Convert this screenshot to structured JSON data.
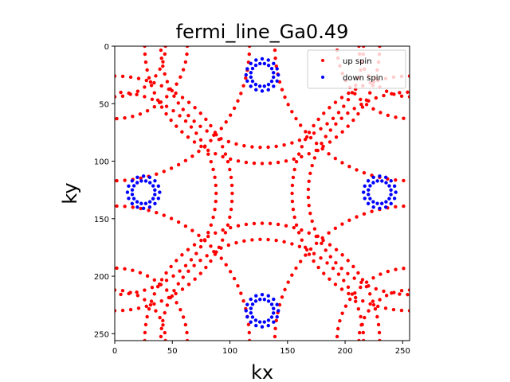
{
  "chart_data": {
    "type": "scatter",
    "title": "fermi_line_Ga0.49",
    "xlabel": "kx",
    "ylabel": "ky",
    "xlim": [
      0,
      256
    ],
    "ylim": [
      256,
      0
    ],
    "y_inverted": true,
    "xticks": [
      0,
      50,
      100,
      150,
      200,
      250
    ],
    "yticks": [
      0,
      50,
      100,
      150,
      200,
      250
    ],
    "grid": false,
    "legend_position": "top-right",
    "colors": {
      "up": "#ff0000",
      "down": "#0000ff"
    },
    "series": [
      {
        "name": "up spin",
        "color": "#ff0000",
        "arcs": [
          {
            "cx": 0,
            "cy": 0,
            "r": 44
          },
          {
            "cx": 256,
            "cy": 0,
            "r": 44
          },
          {
            "cx": 0,
            "cy": 256,
            "r": 44
          },
          {
            "cx": 256,
            "cy": 256,
            "r": 44
          },
          {
            "cx": 0,
            "cy": 0,
            "r": 63
          },
          {
            "cx": 256,
            "cy": 0,
            "r": 63
          },
          {
            "cx": 0,
            "cy": 256,
            "r": 63
          },
          {
            "cx": 256,
            "cy": 256,
            "r": 63
          },
          {
            "cx": 128,
            "cy": 0,
            "r": 88
          },
          {
            "cx": 128,
            "cy": 256,
            "r": 88
          },
          {
            "cx": 0,
            "cy": 128,
            "r": 88
          },
          {
            "cx": 256,
            "cy": 128,
            "r": 88
          },
          {
            "cx": 128,
            "cy": 0,
            "r": 102
          },
          {
            "cx": 128,
            "cy": 256,
            "r": 102
          },
          {
            "cx": 0,
            "cy": 128,
            "r": 102
          },
          {
            "cx": 256,
            "cy": 128,
            "r": 102
          },
          {
            "cx": 0,
            "cy": 0,
            "r": 117
          },
          {
            "cx": 256,
            "cy": 0,
            "r": 117
          },
          {
            "cx": 0,
            "cy": 256,
            "r": 117
          },
          {
            "cx": 256,
            "cy": 256,
            "r": 117
          }
        ]
      },
      {
        "name": "down spin",
        "color": "#0000ff",
        "circles": [
          {
            "cx": 128,
            "cy": 25,
            "rings": [
              14,
              10
            ]
          },
          {
            "cx": 128,
            "cy": 230,
            "rings": [
              14,
              10
            ]
          },
          {
            "cx": 25,
            "cy": 127,
            "rings": [
              14,
              10
            ]
          },
          {
            "cx": 230,
            "cy": 127,
            "rings": [
              14,
              10
            ]
          }
        ]
      }
    ]
  }
}
